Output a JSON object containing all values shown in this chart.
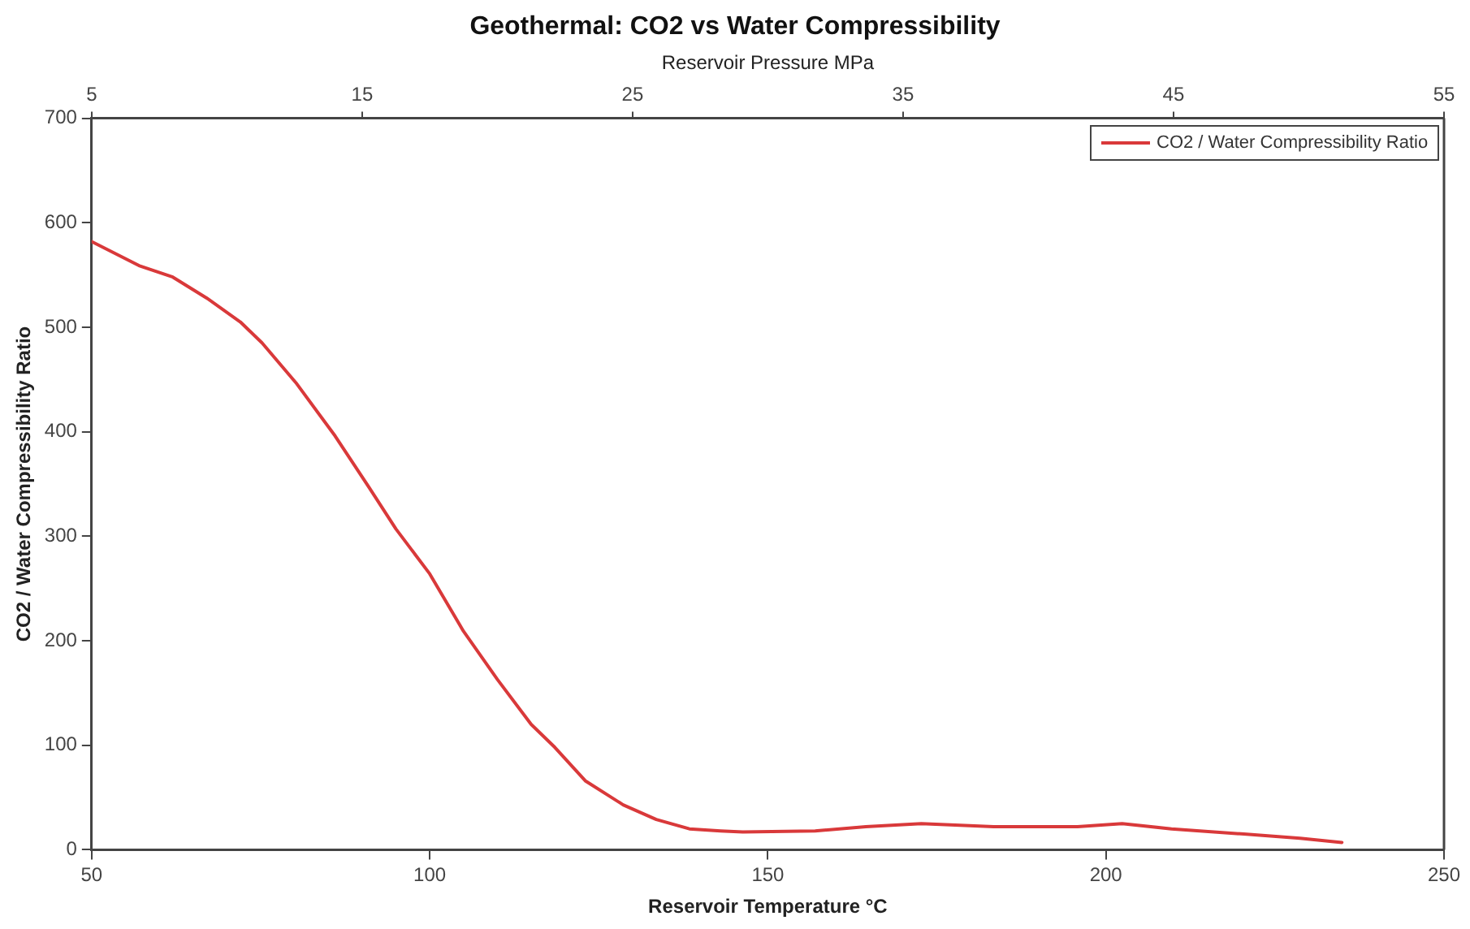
{
  "chart_data": {
    "type": "line",
    "title": "Geothermal: CO2 vs Water Compressibility",
    "xlabel": "Reservoir Temperature °C",
    "ylabel": "CO2 / Water Compressibility Ratio",
    "x2label": "Reservoir Pressure MPa",
    "xlim": [
      50,
      250
    ],
    "xticks": [
      50,
      100,
      150,
      200,
      250
    ],
    "ylim": [
      0,
      700
    ],
    "yticks": [
      0,
      100,
      200,
      300,
      400,
      500,
      600,
      700
    ],
    "x2lim": [
      5,
      55
    ],
    "x2ticks": [
      5,
      15,
      25,
      35,
      45,
      55
    ],
    "legend": "top right",
    "grid": false,
    "marker": "none",
    "line_style": "solid",
    "series": [
      {
        "name": "CO2 / Water Compressibility Ratio",
        "color": "#d9393a",
        "x": [
          50,
          57,
          62,
          67,
          72,
          75.2,
          80.2,
          86,
          91,
          95,
          100,
          105,
          110,
          115,
          118.5,
          123,
          128.6,
          133.5,
          138.4,
          143,
          146.3,
          157,
          164.5,
          172.7,
          183.4,
          195.8,
          202.4,
          209.7,
          220.4,
          228.7,
          234.9
        ],
        "values": [
          582,
          559,
          548,
          528,
          505,
          485,
          447,
          396,
          347,
          307,
          264,
          209,
          163,
          120,
          98,
          66,
          43,
          29,
          20,
          18,
          17,
          18,
          22,
          25,
          22,
          22,
          25,
          20,
          15,
          11,
          7
        ]
      }
    ]
  }
}
